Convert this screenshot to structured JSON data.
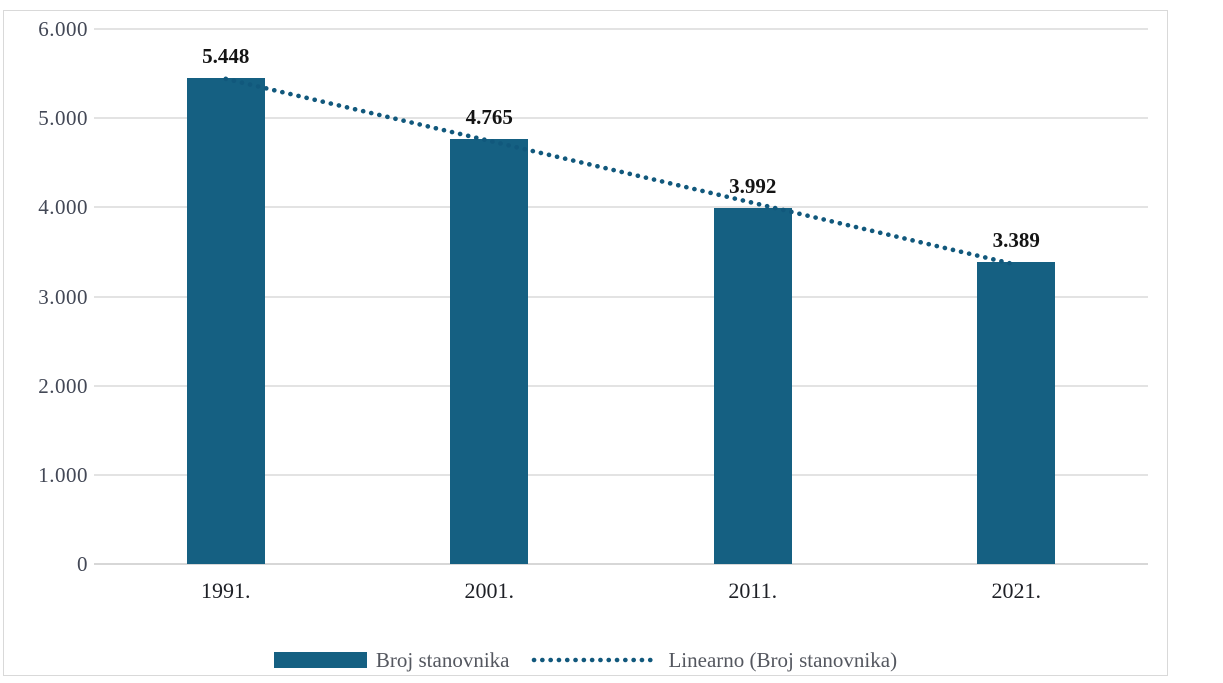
{
  "chart_data": {
    "type": "bar",
    "title": "",
    "categories": [
      "1991.",
      "2001.",
      "2011.",
      "2021."
    ],
    "series": [
      {
        "name": "Broj stanovnika",
        "values": [
          5448,
          4765,
          3992,
          3389
        ],
        "data_labels": [
          "5.448",
          "4.765",
          "3.992",
          "3.389"
        ]
      }
    ],
    "y_axis": {
      "min": 0,
      "max": 6000,
      "ticks": [
        {
          "label": "6.000",
          "value": 6000
        },
        {
          "label": "5.000",
          "value": 5000
        },
        {
          "label": "4.000",
          "value": 4000
        },
        {
          "label": "3.000",
          "value": 3000
        },
        {
          "label": "2.000",
          "value": 2000
        },
        {
          "label": "1.000",
          "value": 1000
        },
        {
          "label": "0",
          "value": 0
        }
      ]
    },
    "xlabel": "",
    "ylabel": "",
    "grid": true,
    "trendline": {
      "name": "Linearno (Broj stanovnika)",
      "kind": "linear",
      "style": "dotted",
      "start_value": 5441,
      "end_value": 3356
    },
    "legend_position": "bottom"
  },
  "legend": {
    "series_label": "Broj stanovnika",
    "trend_label": "Linearno (Broj stanovnika)"
  },
  "colors": {
    "bar": "#156082",
    "trendline": "#11587c",
    "gridline": "#e3e3e3",
    "axis_line": "#d7d7d7",
    "frame_border": "#d9d9d9",
    "background": "#ffffff",
    "y_tick_text": "#434856",
    "x_tick_text": "#1e2026",
    "data_label_text": "#141414",
    "legend_text": "#54575f"
  }
}
